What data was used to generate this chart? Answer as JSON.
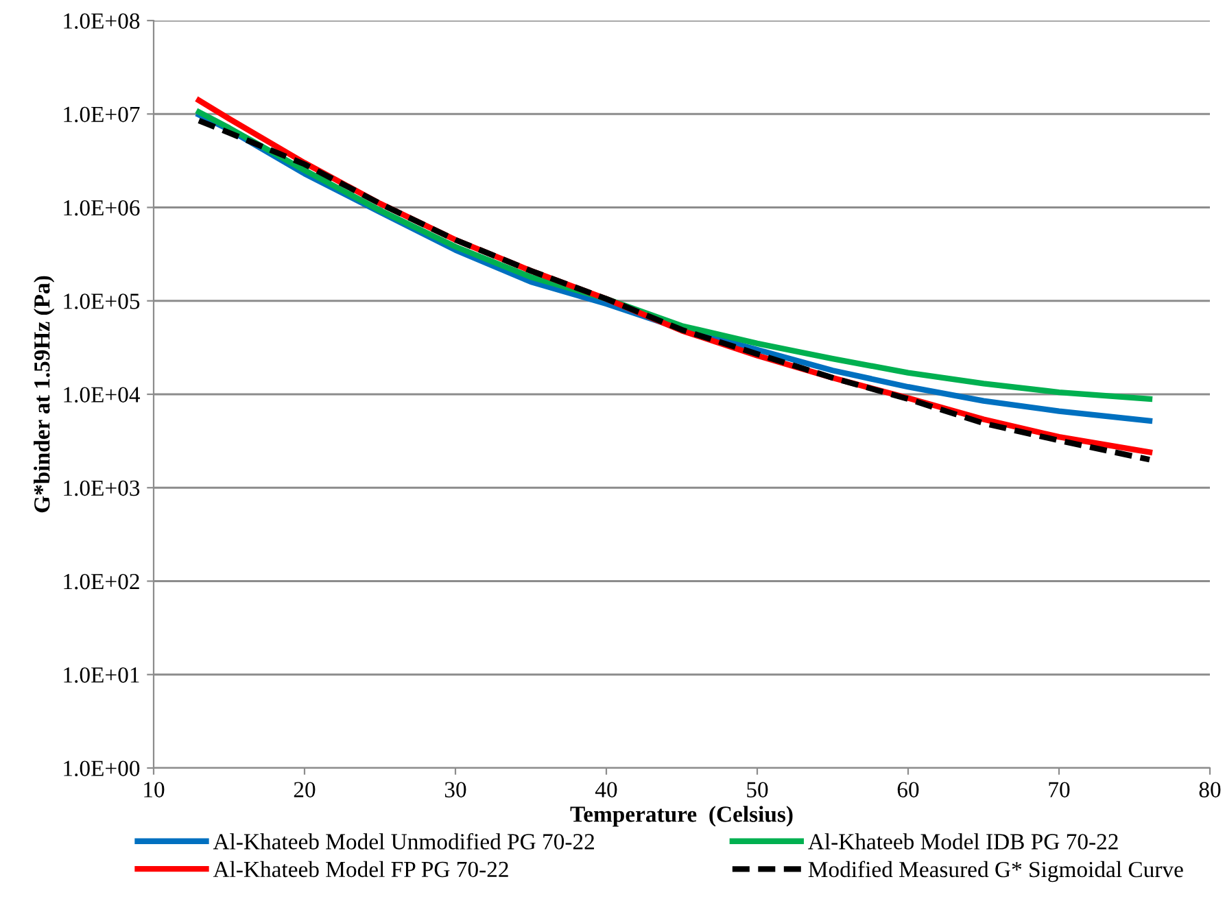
{
  "chart_data": {
    "type": "line",
    "xlabel": "Temperature  (Celsius)",
    "ylabel": "G*binder at 1.59Hz (Pa)",
    "log": "y",
    "grid": "y",
    "legend": "bottom",
    "marker": "none",
    "xlim": [
      10,
      80
    ],
    "xticks": [
      10,
      20,
      30,
      40,
      50,
      60,
      70,
      80
    ],
    "ylim": [
      1,
      100000000
    ],
    "yticks": [
      {
        "value": 1,
        "label": "1.0E+00"
      },
      {
        "value": 10,
        "label": "1.0E+01"
      },
      {
        "value": 100,
        "label": "1.0E+02"
      },
      {
        "value": 1000,
        "label": "1.0E+03"
      },
      {
        "value": 10000,
        "label": "1.0E+04"
      },
      {
        "value": 100000,
        "label": "1.0E+05"
      },
      {
        "value": 1000000,
        "label": "1.0E+06"
      },
      {
        "value": 10000000,
        "label": "1.0E+07"
      },
      {
        "value": 100000000,
        "label": "1.0E+08"
      }
    ],
    "x": [
      13,
      15,
      20,
      25,
      30,
      35,
      40,
      45,
      50,
      55,
      60,
      65,
      70,
      76
    ],
    "series": [
      {
        "name": "Al-Khateeb Model Unmodified PG 70-22",
        "color": "#0070c0",
        "line_style": "solid",
        "values": [
          9800000.0,
          6800000.0,
          2300000.0,
          890000.0,
          350000.0,
          160000.0,
          93000.0,
          50000.0,
          30000.0,
          18000.0,
          12000.0,
          8500.0,
          6600.0,
          5200.0
        ]
      },
      {
        "name": "Al-Khateeb Model IDB PG 70-22",
        "color": "#00b050",
        "line_style": "solid",
        "values": [
          10500000.0,
          7100000.0,
          2500000.0,
          930000.0,
          380000.0,
          180000.0,
          105000.0,
          54000.0,
          35000.0,
          24000.0,
          17000.0,
          13000.0,
          10500.0,
          8900.0
        ]
      },
      {
        "name": "Al-Khateeb Model FP PG 70-22",
        "color": "#ff0000",
        "line_style": "solid",
        "values": [
          14000000.0,
          8900000.0,
          3000000.0,
          1100000.0,
          450000.0,
          210000.0,
          105000.0,
          48000.0,
          26000.0,
          15000.0,
          9100.0,
          5400.0,
          3500.0,
          2400.0
        ]
      },
      {
        "name": "Modified Measured G* Sigmoidal Curve",
        "color": "#000000",
        "line_style": "dashed",
        "values": [
          8500000.0,
          6300000.0,
          2900000.0,
          1100000.0,
          450000.0,
          210000.0,
          105000.0,
          49000.0,
          27000.0,
          15000.0,
          8900.0,
          4900.0,
          3200.0,
          2000.0
        ]
      }
    ]
  }
}
